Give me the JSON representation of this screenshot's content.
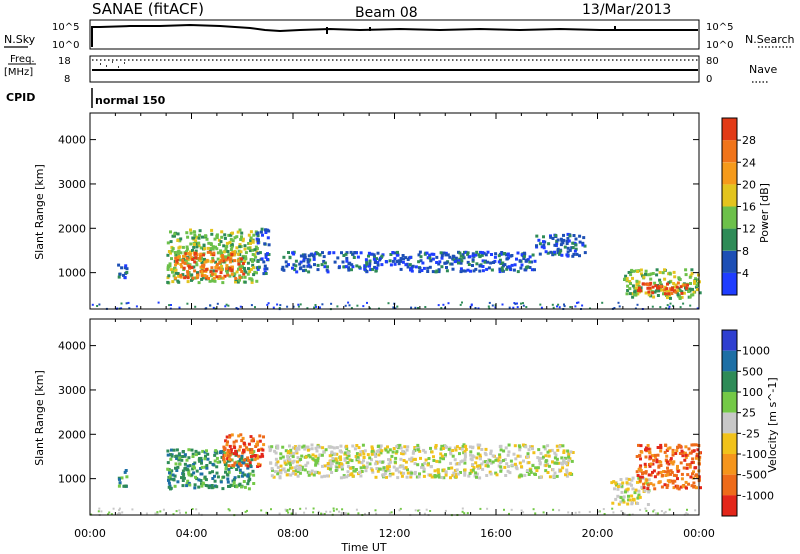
{
  "header": {
    "station": "SANAE (fitACF)",
    "beam": "Beam 08",
    "date": "13/Mar/2013"
  },
  "noise_panel": {
    "left_label": "N.Sky",
    "right_label": "N.Search",
    "left_top_tick": "10^5",
    "left_bottom_tick": "10^0",
    "right_top_tick": "10^5",
    "right_bottom_tick": "10^0"
  },
  "freq_panel": {
    "left_label_1": "Freq.",
    "left_label_2": "[MHz]",
    "left_top_tick": "18",
    "left_bottom_tick": "8",
    "right_label": "Nave",
    "right_top_tick": "80",
    "right_bottom_tick": "0"
  },
  "cpid": {
    "label": "CPID",
    "value": "normal 150"
  },
  "chart_data": [
    {
      "type": "heatmap",
      "name": "power",
      "ylabel": "Slant Range [km]",
      "yticks": [
        "1000",
        "2000",
        "3000",
        "4000"
      ],
      "ylim": [
        180,
        4600
      ],
      "colorbar_label": "Power [dB]",
      "colorbar_ticks": [
        "4",
        "8",
        "12",
        "16",
        "20",
        "24",
        "28"
      ],
      "colorbar_colors": [
        "#1f3dff",
        "#1d4fb5",
        "#2e8b57",
        "#6cc04a",
        "#e3c41e",
        "#f59a1b",
        "#f0741a",
        "#e23a17"
      ],
      "regions": [
        {
          "t0": 1.0,
          "t1": 1.4,
          "r0": 850,
          "r1": 1250,
          "level": 1
        },
        {
          "t0": 3.0,
          "t1": 6.6,
          "r0": 800,
          "r1": 2000,
          "level": 3
        },
        {
          "t0": 3.3,
          "t1": 6.0,
          "r0": 900,
          "r1": 1500,
          "level": 6
        },
        {
          "t0": 6.5,
          "t1": 7.0,
          "r0": 1000,
          "r1": 2050,
          "level": 1
        },
        {
          "t0": 7.5,
          "t1": 17.5,
          "r0": 1050,
          "r1": 1500,
          "level": 1
        },
        {
          "t0": 17.5,
          "t1": 19.5,
          "r0": 1400,
          "r1": 1900,
          "level": 1
        },
        {
          "t0": 21.0,
          "t1": 24.0,
          "r0": 450,
          "r1": 1100,
          "level": 3
        },
        {
          "t0": 21.5,
          "t1": 23.5,
          "r0": 550,
          "r1": 800,
          "level": 7
        }
      ]
    },
    {
      "type": "heatmap",
      "name": "velocity",
      "ylabel": "Slant Range [km]",
      "xlabel": "Time UT",
      "xticks": [
        "00:00",
        "04:00",
        "08:00",
        "12:00",
        "16:00",
        "20:00",
        "00:00"
      ],
      "yticks": [
        "1000",
        "2000",
        "3000",
        "4000"
      ],
      "ylim": [
        180,
        4600
      ],
      "colorbar_label": "Velocity [m s^-1]",
      "colorbar_ticks": [
        "1000",
        "500",
        "100",
        "25",
        "-25",
        "-100",
        "-500",
        "-1000"
      ],
      "colorbar_colors": [
        "#2f3fd0",
        "#1d6fa5",
        "#2e8b57",
        "#74c947",
        "#c8c8c8",
        "#f1c21b",
        "#f5951c",
        "#ee6b1a",
        "#e3261a"
      ],
      "regions": [
        {
          "t0": 1.0,
          "t1": 1.4,
          "r0": 850,
          "r1": 1250,
          "level": 2
        },
        {
          "t0": 3.0,
          "t1": 6.4,
          "r0": 800,
          "r1": 1700,
          "level": 2
        },
        {
          "t0": 5.2,
          "t1": 6.8,
          "r0": 1300,
          "r1": 2050,
          "level": 7
        },
        {
          "t0": 7.0,
          "t1": 19.0,
          "r0": 1050,
          "r1": 1800,
          "level": 4
        },
        {
          "t0": 20.5,
          "t1": 22.0,
          "r0": 450,
          "r1": 1050,
          "level": 4
        },
        {
          "t0": 21.5,
          "t1": 24.0,
          "r0": 800,
          "r1": 1800,
          "level": 7
        }
      ]
    }
  ]
}
